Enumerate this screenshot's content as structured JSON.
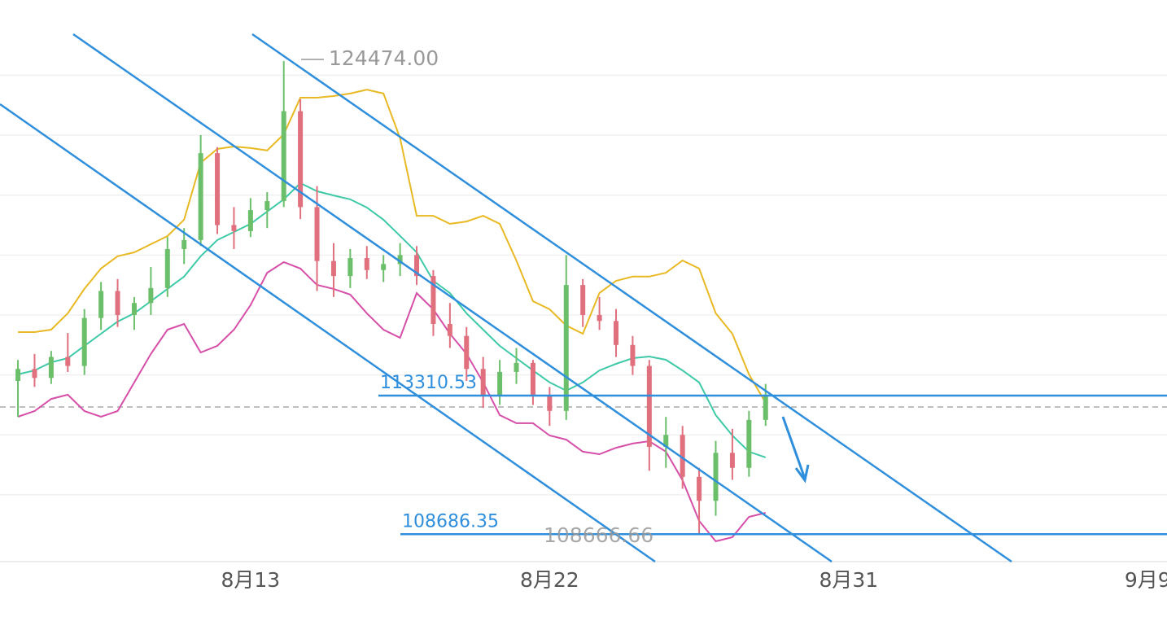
{
  "chart_data": {
    "type": "candlestick",
    "x": [
      6,
      6.5,
      7,
      7.5,
      8,
      8.5,
      9,
      9.5,
      10,
      10.5,
      11,
      11.5,
      12,
      12.5,
      13,
      13.5,
      14,
      14.5,
      15,
      15.5,
      16,
      16.5,
      17,
      17.5,
      18,
      18.5,
      19,
      19.5,
      20,
      20.5,
      21,
      21.5,
      22,
      22.5,
      23,
      23.5,
      24,
      24.5,
      25,
      25.5,
      26,
      26.5,
      27,
      27.5,
      28,
      28.5
    ],
    "open": [
      113800,
      114200,
      113900,
      114600,
      114300,
      115900,
      116800,
      116000,
      116400,
      116900,
      118200,
      118500,
      121400,
      119000,
      118800,
      119500,
      119800,
      122800,
      119600,
      117800,
      117300,
      117900,
      117500,
      117700,
      118000,
      117300,
      115700,
      115300,
      114200,
      113300,
      114100,
      114400,
      113300,
      112800,
      117000,
      116000,
      115800,
      115000,
      114300,
      111600,
      112000,
      110600,
      109800,
      111400,
      110900,
      112500
    ],
    "high": [
      114500,
      114700,
      114800,
      115400,
      116200,
      117100,
      117200,
      116600,
      117600,
      118600,
      118900,
      122000,
      121600,
      119600,
      119900,
      120100,
      124474,
      123200,
      120300,
      118400,
      118200,
      118300,
      118000,
      118400,
      118300,
      117500,
      116400,
      115600,
      114600,
      114500,
      114900,
      114500,
      113600,
      118000,
      117200,
      116600,
      116200,
      115300,
      114500,
      112600,
      112300,
      110900,
      111800,
      112200,
      112800,
      113700
    ],
    "low": [
      112600,
      113600,
      113700,
      114100,
      114000,
      115500,
      115600,
      115500,
      116000,
      116600,
      117700,
      118300,
      118700,
      118200,
      118600,
      118900,
      119600,
      119200,
      116800,
      116600,
      116900,
      117200,
      117100,
      117300,
      117000,
      115300,
      114900,
      113800,
      112900,
      113000,
      113700,
      113000,
      112300,
      112500,
      115600,
      115500,
      114600,
      114000,
      110800,
      110900,
      110200,
      108666.66,
      109300,
      110500,
      110600,
      112300
    ],
    "close": [
      114200,
      113900,
      114600,
      114300,
      115900,
      116800,
      116000,
      116400,
      116900,
      118200,
      118500,
      121400,
      119000,
      118800,
      119500,
      119800,
      122800,
      119600,
      117800,
      117300,
      117900,
      117500,
      117700,
      118000,
      117300,
      115700,
      115300,
      114200,
      113300,
      114100,
      114400,
      113300,
      112800,
      117000,
      116000,
      115800,
      115000,
      114300,
      111600,
      112000,
      110600,
      109800,
      111400,
      110900,
      112500,
      113300
    ],
    "up_color": "#6cbf6a",
    "down_color": "#e0707e",
    "series": [
      {
        "color": "#e8b923",
        "values": [
          115430,
          115430,
          115510,
          116055,
          116870,
          117550,
          117960,
          118090,
          118363,
          118635,
          119180,
          121080,
          121540,
          121620,
          121570,
          121490,
          122030,
          123250,
          123250,
          123306,
          123390,
          123520,
          123390,
          121900,
          119310,
          119310,
          119040,
          119120,
          119310,
          119040,
          117820,
          116460,
          116190,
          115650,
          115375,
          116735,
          117140,
          117280,
          117280,
          117410,
          117820,
          117550,
          116055,
          115375,
          114020,
          113070
        ]
      },
      {
        "color": "#3ec9a7",
        "values": [
          114020,
          114150,
          114420,
          114560,
          114970,
          115375,
          115780,
          116055,
          116460,
          116870,
          117280,
          117960,
          118500,
          118770,
          119040,
          119450,
          119860,
          120400,
          120130,
          119990,
          119860,
          119585,
          119180,
          118640,
          118090,
          117140,
          116730,
          116055,
          115510,
          114970,
          114560,
          114150,
          113750,
          113475,
          113750,
          114150,
          114370,
          114560,
          114615,
          114505,
          114150,
          113750,
          112660,
          111980,
          111440,
          111250
        ]
      },
      {
        "color": "#d64fa8",
        "values": [
          112605,
          112795,
          113200,
          113340,
          112795,
          112605,
          112795,
          113750,
          114700,
          115510,
          115700,
          114750,
          114970,
          115510,
          116330,
          117410,
          117765,
          117550,
          117005,
          116870,
          116680,
          116055,
          115510,
          115240,
          116730,
          116190,
          115375,
          114700,
          113750,
          112660,
          112390,
          112390,
          111980,
          111840,
          111440,
          111355,
          111570,
          111710,
          111790,
          111440,
          110487,
          109130,
          108450,
          108585,
          109265,
          109400
        ]
      }
    ],
    "xlim": [
      5.46,
      40.58
    ],
    "xticks": [
      {
        "value": 13,
        "label": "8月13"
      },
      {
        "value": 22,
        "label": "8月22"
      },
      {
        "value": 31,
        "label": "8月31"
      },
      {
        "value": 40,
        "label": "9月9"
      }
    ],
    "ylim": [
      107770,
      126510
    ],
    "yticks": [
      110000,
      112000,
      114000,
      116000,
      118000,
      120000,
      122000,
      124000
    ],
    "grid": true,
    "current_price": 112930,
    "high_label": {
      "value": 124474,
      "label": "124474.00"
    },
    "low_label": 108666.66,
    "horizontal_lines": [
      113310.53,
      108686.35
    ]
  }
}
